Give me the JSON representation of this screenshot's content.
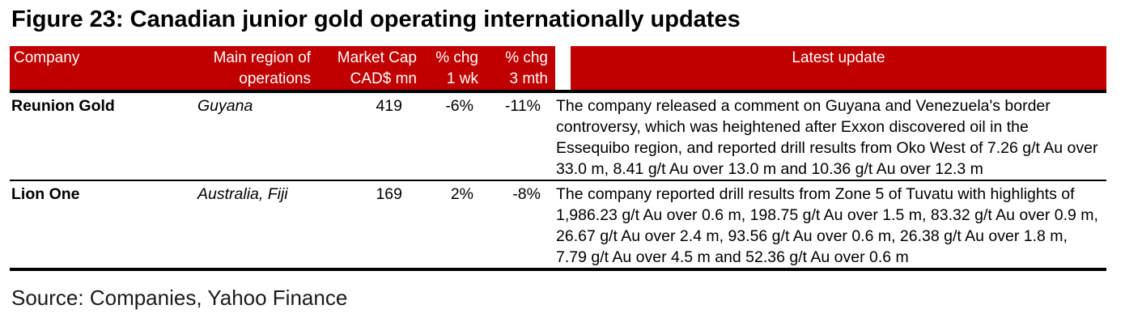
{
  "figure": {
    "title": "Figure 23: Canadian junior gold operating internationally updates"
  },
  "table": {
    "headers": {
      "company": "Company",
      "region": [
        "Main region of",
        "operations"
      ],
      "market_cap": [
        "Market Cap",
        "CAD$ mn"
      ],
      "chg_1wk": [
        "% chg",
        "1 wk"
      ],
      "chg_3mth": [
        "% chg",
        "3 mth"
      ],
      "latest_update": "Latest update"
    },
    "rows": [
      {
        "company": "Reunion Gold",
        "region": "Guyana",
        "market_cap": "419",
        "chg_1wk": "-6%",
        "chg_3mth": "-11%",
        "latest_update": "The company released a comment on Guyana and Venezuela's border controversy, which was heightened after Exxon discovered oil in the Essequibo region, and reported drill results from Oko West of 7.26 g/t Au over 33.0 m, 8.41 g/t Au over 13.0 m and 10.36 g/t Au over 12.3 m"
      },
      {
        "company": "Lion One",
        "region": "Australia, Fiji",
        "market_cap": "169",
        "chg_1wk": "2%",
        "chg_3mth": "-8%",
        "latest_update": "The company reported drill results from Zone 5 of Tuvatu with highlights of 1,986.23 g/t Au over 0.6 m, 198.75 g/t Au over 1.5 m, 83.32 g/t Au over 0.9 m, 26.67 g/t Au over 2.4 m, 93.56 g/t Au over 0.6 m, 26.38 g/t Au over 1.8 m, 7.79 g/t Au over 4.5 m and 52.36 g/t Au over 0.6 m"
      }
    ]
  },
  "source": {
    "label": "Source: Companies, Yahoo Finance"
  },
  "colors": {
    "header_bg": "#C00000",
    "header_text": "#FFFFFF",
    "border": "#000000"
  }
}
